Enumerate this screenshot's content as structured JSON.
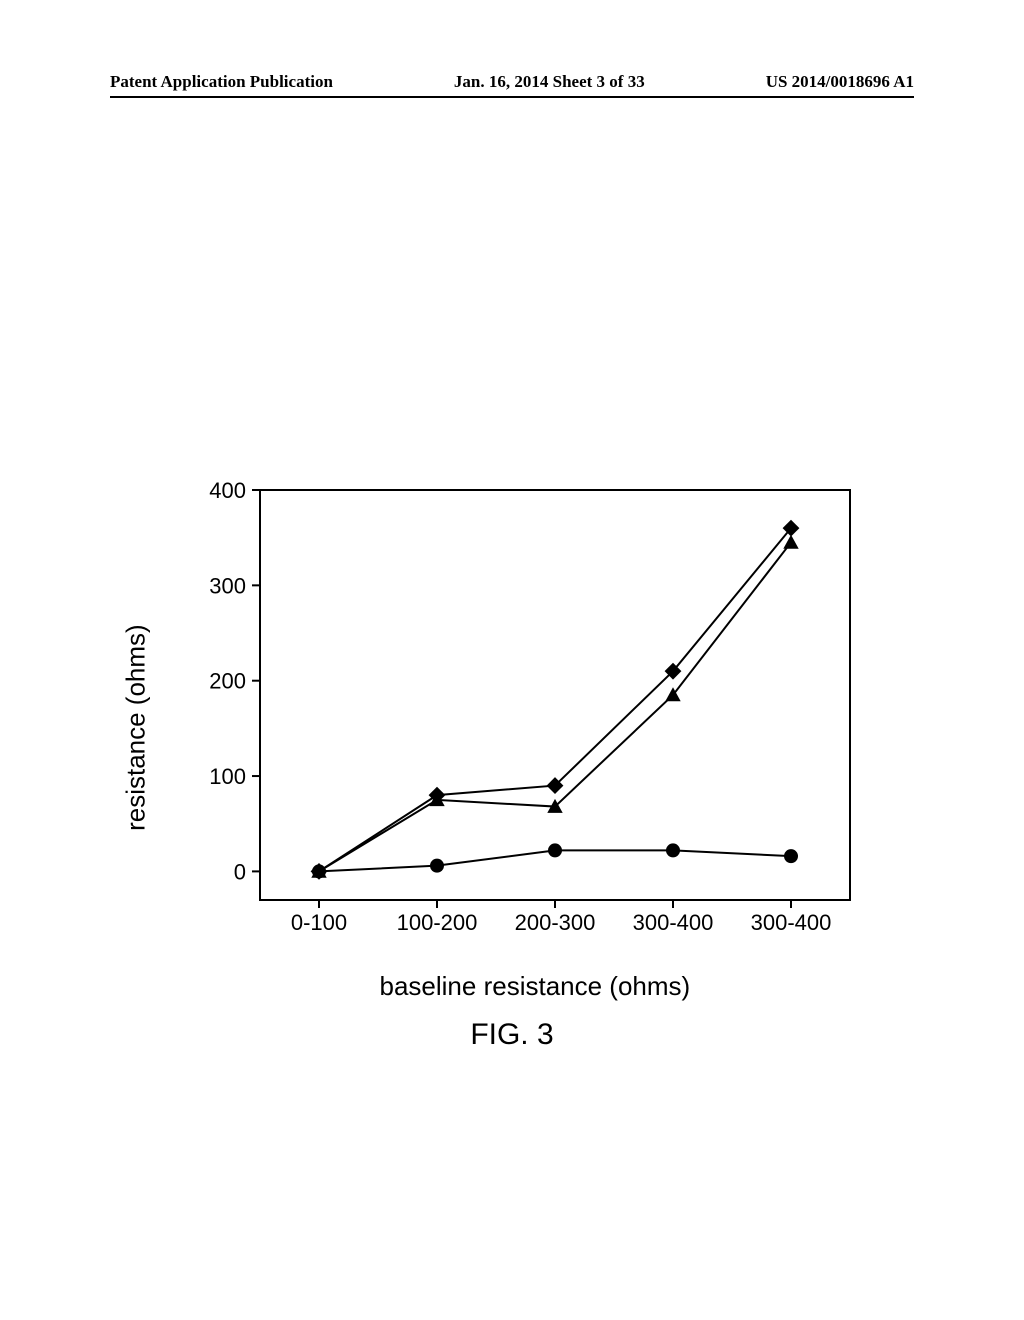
{
  "header": {
    "left": "Patent Application Publication",
    "center": "Jan. 16, 2014  Sheet 3 of 33",
    "right": "US 2014/0018696 A1"
  },
  "chart": {
    "type": "line",
    "xlabel": "baseline resistance (ohms)",
    "ylabel": "resistance (ohms)",
    "label_fontsize": 26,
    "tick_fontsize": 22,
    "xlim": [
      0,
      5
    ],
    "ylim": [
      -30,
      400
    ],
    "ytick_step": 100,
    "yticks": [
      0,
      100,
      200,
      300,
      400
    ],
    "xticks": [
      0.5,
      1.5,
      2.5,
      3.5,
      4.5
    ],
    "xtick_labels": [
      "0-100",
      "100-200",
      "200-300",
      "300-400",
      "300-400"
    ],
    "background_color": "#ffffff",
    "axis_color": "#000000",
    "axis_width": 2,
    "line_width": 2,
    "marker_size": 7,
    "series": [
      {
        "name": "series-diamond",
        "marker": "diamond",
        "color": "#000000",
        "values": [
          0,
          80,
          90,
          210,
          360
        ]
      },
      {
        "name": "series-triangle",
        "marker": "triangle",
        "color": "#000000",
        "values": [
          0,
          75,
          68,
          185,
          345
        ]
      },
      {
        "name": "series-circle",
        "marker": "circle",
        "color": "#000000",
        "values": [
          0,
          6,
          22,
          22,
          16
        ]
      }
    ]
  },
  "figure_caption": "FIG. 3"
}
